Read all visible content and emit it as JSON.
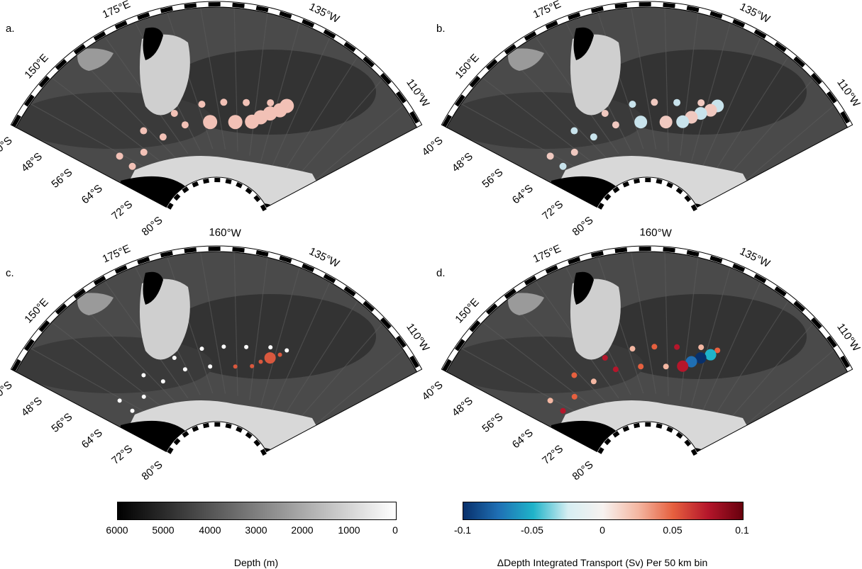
{
  "panels": [
    {
      "id": "a",
      "label": "a."
    },
    {
      "id": "b",
      "label": "b."
    },
    {
      "id": "c",
      "label": "c."
    },
    {
      "id": "d",
      "label": "d."
    }
  ],
  "map_labels": {
    "lon": [
      "150°E",
      "175°E",
      "160°W",
      "135°W",
      "110°W"
    ],
    "lat": [
      "40°S",
      "48°S",
      "56°S",
      "64°S",
      "72°S",
      "80°S"
    ]
  },
  "depth_colorbar": {
    "ticks": [
      "6000",
      "5000",
      "4000",
      "3000",
      "2000",
      "1000",
      "0"
    ],
    "title": "Depth (m)",
    "colors": [
      "#000000",
      "#ffffff"
    ]
  },
  "transport_colorbar": {
    "ticks": [
      "-0.1",
      "-0.05",
      "0",
      "0.05",
      "0.1"
    ],
    "title": "ΔDepth Integrated Transport (Sv) Per 50 km bin",
    "colors": [
      "#08306b",
      "#1f6fb4",
      "#1fb3c9",
      "#d6eef2",
      "#f7f2f0",
      "#f4b7a2",
      "#e6603f",
      "#b5162b",
      "#67000d"
    ]
  }
}
